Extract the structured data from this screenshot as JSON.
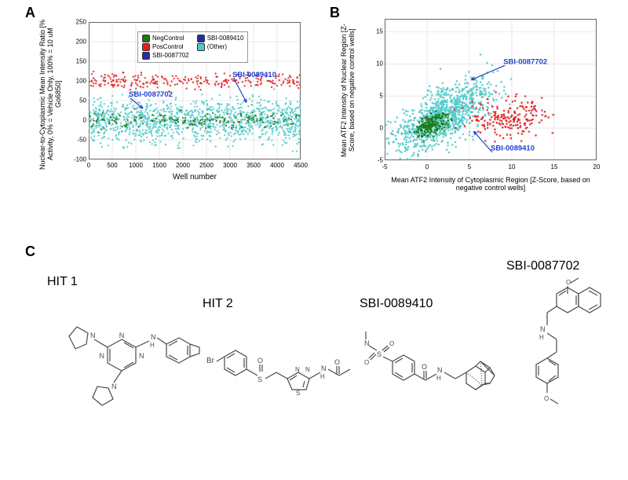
{
  "panelA": {
    "type": "scatter",
    "label": "A",
    "y_axis_label": "Nuclear-to-Cytoplasmic Mean Intensity Ratio\n[% Activity, 0% = Vehicle Only, 100% = 10 uM Go6850]",
    "x_axis_label": "Well number",
    "xlim": [
      0,
      4500
    ],
    "ylim": [
      -100,
      250
    ],
    "xtick_step": 500,
    "ytick_step": 50,
    "grid_color": "#d8d8d8",
    "border_color": "#666666",
    "background_color": "#ffffff",
    "marker_size": 1.2,
    "label_fontsize": 9,
    "tick_fontsize": 8,
    "legend": {
      "items": [
        {
          "label": "NegControl",
          "color": "#1a7a1a"
        },
        {
          "label": "SBI-0089410",
          "color": "#2a2aa8"
        },
        {
          "label": "PosControl",
          "color": "#e02020"
        },
        {
          "label": "(Other)",
          "color": "#4fc9c9"
        },
        {
          "label": "SBI-0087702",
          "color": "#2a2aa8"
        }
      ],
      "border_color": "#999999",
      "position": "top-left"
    },
    "annotations": [
      {
        "text": "SBI-0087702",
        "x_data": 850,
        "y_data": 60,
        "color": "#2242cc",
        "arrow_to": {
          "x_data": 1150,
          "y_data": 30
        }
      },
      {
        "text": "SBI-0089410",
        "x_data": 3050,
        "y_data": 110,
        "color": "#2242cc",
        "arrow_to": {
          "x_data": 3350,
          "y_data": 45
        }
      }
    ],
    "series": [
      {
        "name": "Other",
        "color": "#4fc9c9",
        "generate": {
          "n": 1200,
          "x_min": 0,
          "x_max": 4500,
          "y_mean": 0,
          "y_sd": 28,
          "seed": 11
        }
      },
      {
        "name": "NegControl",
        "color": "#1a7a1a",
        "generate": {
          "n": 180,
          "x_min": 0,
          "x_max": 4500,
          "y_mean": 0,
          "y_sd": 10,
          "seed": 21
        }
      },
      {
        "name": "PosControl",
        "color": "#e02020",
        "generate": {
          "n": 260,
          "x_min": 0,
          "x_max": 4500,
          "y_mean": 100,
          "y_sd": 10,
          "seed": 31
        }
      }
    ]
  },
  "panelB": {
    "type": "scatter",
    "label": "B",
    "y_axis_label": "Mean ATF2 Intensity of Nuclear Region\n[Z-Score, based on negative control wells]",
    "x_axis_label": "Mean ATF2 Intensity of Cytoplasmic Region\n[Z-Score, based on negative control wells]",
    "xlim": [
      -5,
      20
    ],
    "ylim": [
      -5,
      17
    ],
    "xtick_step": 5,
    "ytick_step": 5,
    "grid_color": "#d8d8d8",
    "border_color": "#666666",
    "background_color": "#ffffff",
    "marker_size": 1.3,
    "annotations": [
      {
        "text": "SBI-0087702",
        "x_data": 9,
        "y_data": 10,
        "color": "#2242cc",
        "arrow_to": {
          "x_data": 5.2,
          "y_data": 7.5
        }
      },
      {
        "text": "SBI-0089410",
        "x_data": 7.5,
        "y_data": -3.5,
        "color": "#2242cc",
        "arrow_to": {
          "x_data": 5.5,
          "y_data": -0.5
        }
      }
    ],
    "series": [
      {
        "name": "Other",
        "color": "#4fc9c9",
        "generate": {
          "n": 1000,
          "cx": 1.8,
          "cy": 1.8,
          "sdx": 2.8,
          "sdy": 2.8,
          "corr": 0.65,
          "seed": 41
        }
      },
      {
        "name": "NegControl",
        "color": "#1a7a1a",
        "generate": {
          "n": 200,
          "cx": 0.5,
          "cy": 0.5,
          "sdx": 1.0,
          "sdy": 1.0,
          "corr": 0.55,
          "seed": 51
        }
      },
      {
        "name": "PosControl",
        "color": "#e02020",
        "generate": {
          "n": 200,
          "cx": 9.5,
          "cy": 1.8,
          "sdx": 2.4,
          "sdy": 1.6,
          "corr": 0.15,
          "seed": 61
        }
      }
    ]
  },
  "panelC": {
    "label": "C",
    "stroke_color": "#4a4a4a",
    "stroke_width": 1.2,
    "label_fontsize": 16,
    "molecules": [
      {
        "name": "HIT 1",
        "label_offset_y": 24
      },
      {
        "name": "HIT 2",
        "label_offset_y": 52
      },
      {
        "name": "SBI-0089410",
        "label_offset_y": 52
      },
      {
        "name": "SBI-0087702",
        "label_offset_y": 0
      }
    ]
  }
}
